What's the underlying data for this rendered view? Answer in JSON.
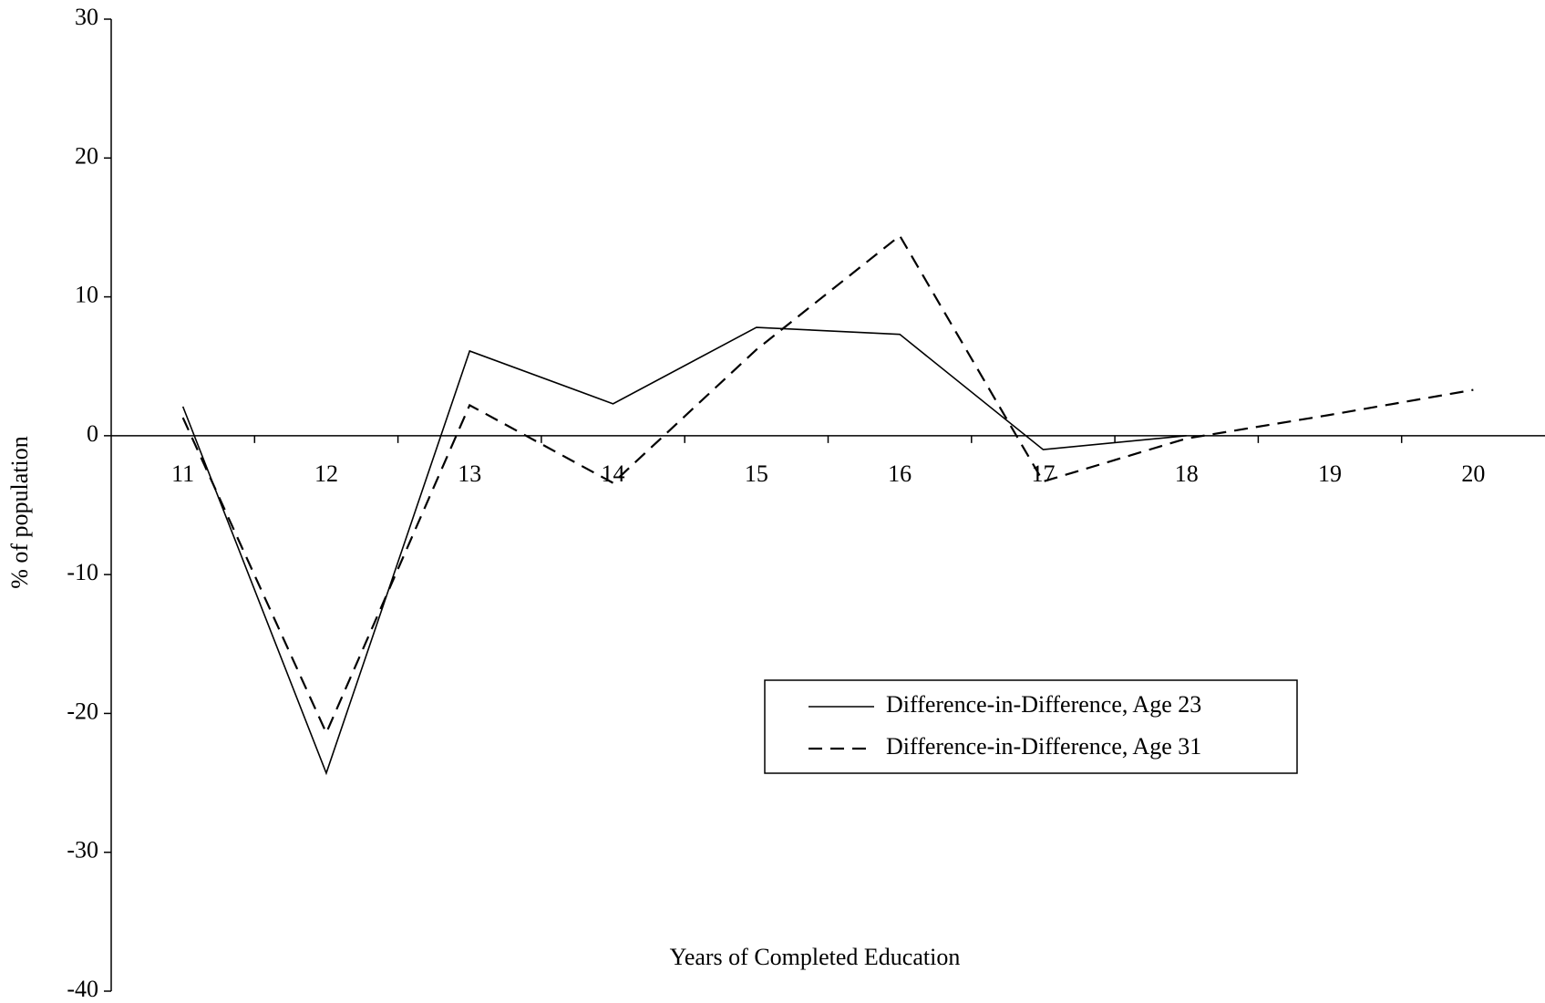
{
  "chart_data": {
    "type": "line",
    "x_label": "Years of Completed Education",
    "y_label": "% of population",
    "categories": [
      "11",
      "12",
      "13",
      "14",
      "15",
      "16",
      "17",
      "18",
      "19",
      "20"
    ],
    "series": [
      {
        "name": "Difference-in-Difference, Age 23",
        "color": "#000000",
        "dash": "solid",
        "values": [
          2.1,
          -24.3,
          6.1,
          2.3,
          7.8,
          7.3,
          -1.0,
          0,
          null,
          null
        ]
      },
      {
        "name": "Difference-in-Difference, Age 31",
        "color": "#000000",
        "dash": "dashed",
        "values": [
          1.3,
          -21.4,
          2.2,
          -3.4,
          6.2,
          14.4,
          -3.3,
          -0.2,
          1.5,
          3.3
        ]
      }
    ],
    "ylim": [
      -40,
      30
    ],
    "yticks": [
      -40,
      -30,
      -20,
      -10,
      0,
      10,
      20,
      30
    ],
    "grid": false
  }
}
